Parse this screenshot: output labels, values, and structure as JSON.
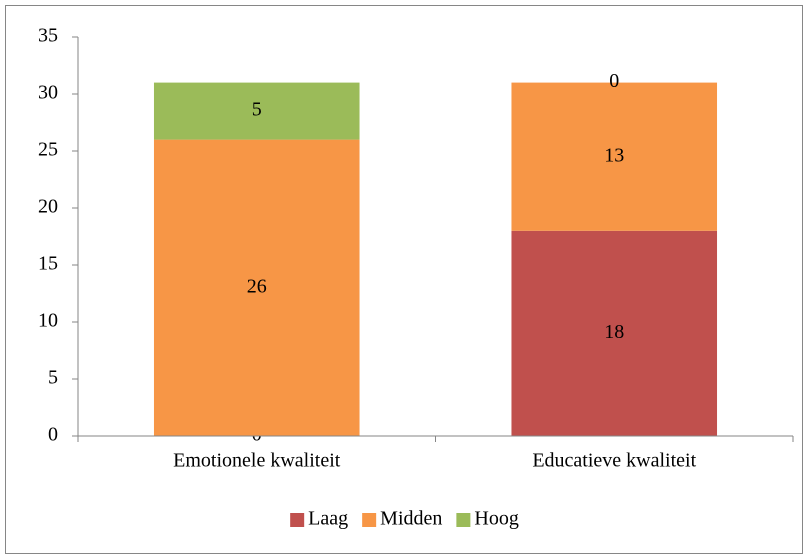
{
  "chart_data": {
    "type": "stacked_bar",
    "categories": [
      "Emotionele kwaliteit",
      "Educatieve kwaliteit"
    ],
    "series": [
      {
        "name": "Laag",
        "color": "#c0504d",
        "values": [
          0,
          18
        ]
      },
      {
        "name": "Midden",
        "color": "#f79646",
        "values": [
          26,
          13
        ]
      },
      {
        "name": "Hoog",
        "color": "#9bbb59",
        "values": [
          5,
          0
        ]
      }
    ],
    "ylim": [
      0,
      35
    ],
    "yticks": [
      0,
      5,
      10,
      15,
      20,
      25,
      30,
      35
    ],
    "legend": "bottom",
    "data_labels": true
  }
}
